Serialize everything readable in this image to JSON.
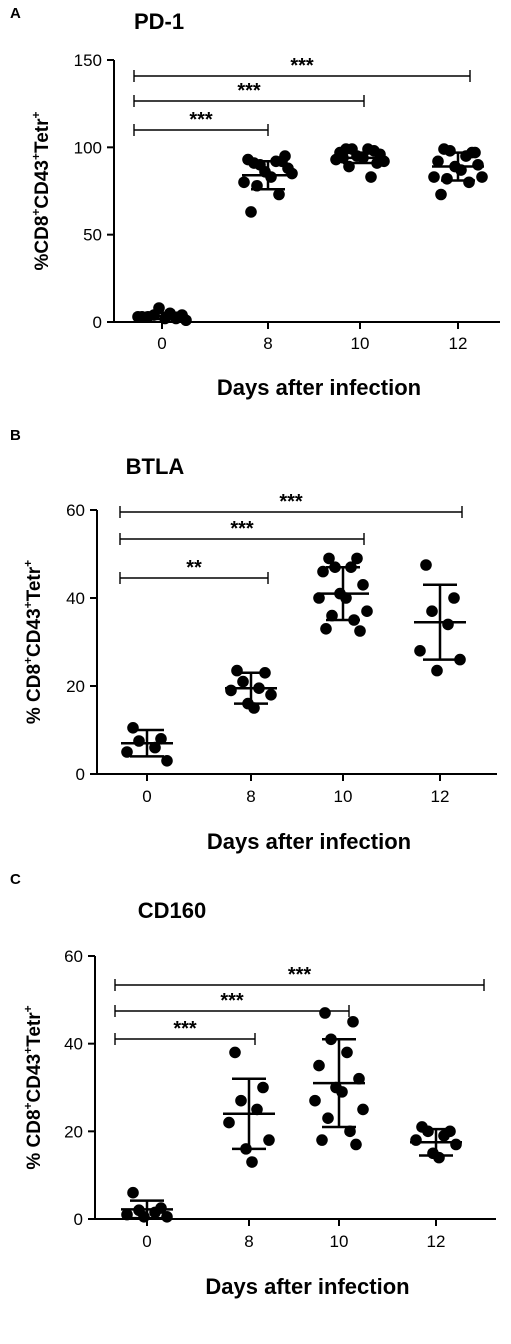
{
  "chart_data": [
    {
      "type": "scatter",
      "panel_label": "A",
      "title": "PD-1",
      "xlabel": "Days after infection",
      "ylabel": "%CD8+CD43+Tetr+",
      "ylabel_parts": [
        "%CD8",
        "+",
        "CD43",
        "+",
        "Tetr",
        "+"
      ],
      "categories": [
        "0",
        "8",
        "10",
        "12"
      ],
      "ylim": [
        0,
        150
      ],
      "yticks": [
        "0",
        "50",
        "100",
        "150"
      ],
      "groups": [
        {
          "points": [
            3,
            2,
            4,
            5,
            3,
            4,
            8,
            2,
            3,
            1
          ],
          "mean": 3.5,
          "sd": 1.8
        },
        {
          "points": [
            91,
            92,
            90,
            92,
            93,
            88,
            86,
            83,
            80,
            85,
            78,
            73,
            63,
            95
          ],
          "mean": 84,
          "sd": 8
        },
        {
          "points": [
            99,
            98,
            99,
            99,
            97,
            96,
            95,
            94,
            93,
            92,
            89,
            83,
            94,
            91
          ],
          "mean": 94,
          "sd": 3
        },
        {
          "points": [
            99,
            97,
            98,
            95,
            92,
            90,
            89,
            87,
            83,
            83,
            82,
            80,
            73,
            97
          ],
          "mean": 89,
          "sd": 8
        }
      ],
      "comparisons": [
        {
          "from": "0",
          "to": "8",
          "label": "***"
        },
        {
          "from": "0",
          "to": "10",
          "label": "***"
        },
        {
          "from": "0",
          "to": "12",
          "label": "***"
        }
      ]
    },
    {
      "type": "scatter",
      "panel_label": "B",
      "title": "BTLA",
      "xlabel": "Days after infection",
      "ylabel": "% CD8+CD43+Tetr+",
      "ylabel_parts": [
        "% CD8",
        "+",
        "CD43",
        "+",
        "Tetr",
        "+"
      ],
      "categories": [
        "0",
        "8",
        "10",
        "12"
      ],
      "ylim": [
        0,
        60
      ],
      "yticks": [
        "0",
        "20",
        "40",
        "60"
      ],
      "groups": [
        {
          "points": [
            10.5,
            8,
            7.5,
            6,
            5,
            3
          ],
          "mean": 7,
          "sd": 3
        },
        {
          "points": [
            23.5,
            23,
            21,
            19.5,
            19,
            18,
            16,
            15
          ],
          "mean": 19.5,
          "sd": 3.5
        },
        {
          "points": [
            49,
            49,
            47,
            47,
            46,
            43,
            41,
            40,
            40,
            37,
            36,
            35,
            33,
            32.5
          ],
          "mean": 41,
          "sd": 6
        },
        {
          "points": [
            47.5,
            40,
            37,
            34,
            28,
            26,
            23.5
          ],
          "mean": 34.5,
          "sd": 8.5
        }
      ],
      "comparisons": [
        {
          "from": "0",
          "to": "8",
          "label": "**"
        },
        {
          "from": "0",
          "to": "10",
          "label": "***"
        },
        {
          "from": "0",
          "to": "12",
          "label": "***"
        }
      ]
    },
    {
      "type": "scatter",
      "panel_label": "C",
      "title": "CD160",
      "xlabel": "Days after infection",
      "ylabel": "% CD8+CD43+Tetr+",
      "ylabel_parts": [
        "% CD8",
        "+",
        "CD43",
        "+",
        "Tetr",
        "+"
      ],
      "categories": [
        "0",
        "8",
        "10",
        "12"
      ],
      "ylim": [
        0,
        60
      ],
      "yticks": [
        "0",
        "20",
        "40",
        "60"
      ],
      "groups": [
        {
          "points": [
            6,
            2.5,
            2,
            1.5,
            1,
            0.5,
            0.5
          ],
          "mean": 2.2,
          "sd": 2
        },
        {
          "points": [
            38,
            30,
            27,
            25,
            22,
            18,
            16,
            13
          ],
          "mean": 24,
          "sd": 8
        },
        {
          "points": [
            47,
            45,
            41,
            38,
            35,
            32,
            30,
            29,
            27,
            25,
            23,
            20,
            18,
            17
          ],
          "mean": 31,
          "sd": 10
        },
        {
          "points": [
            21,
            20,
            20,
            19,
            18,
            17,
            15,
            14
          ],
          "mean": 17.5,
          "sd": 3
        }
      ],
      "comparisons": [
        {
          "from": "0",
          "to": "8",
          "label": "***"
        },
        {
          "from": "0",
          "to": "10",
          "label": "***"
        },
        {
          "from": "0",
          "to": "12",
          "label": "***"
        }
      ]
    }
  ]
}
